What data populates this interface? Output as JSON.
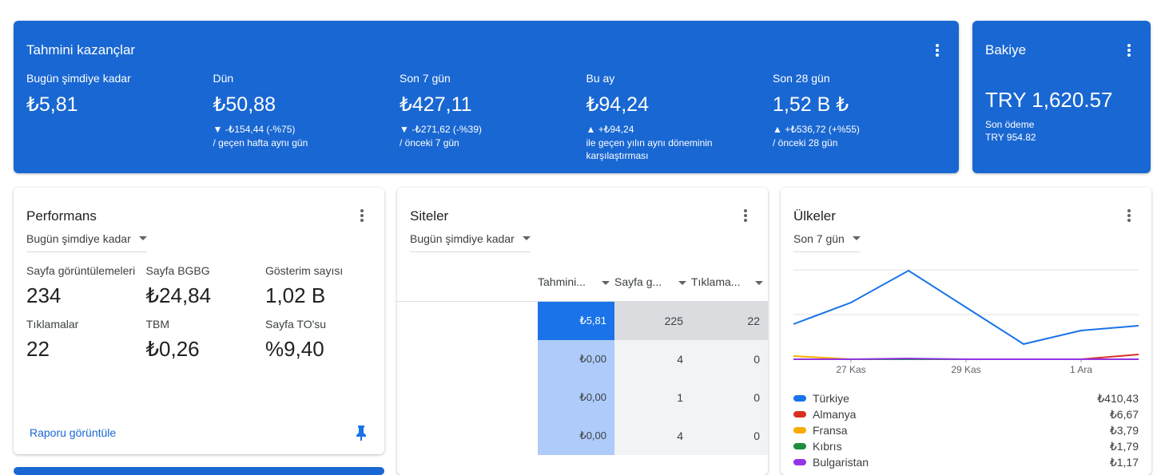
{
  "earnings": {
    "title": "Tahmini kazançlar",
    "items": [
      {
        "label": "Bugün şimdiye kadar",
        "value": "₺5,81"
      },
      {
        "label": "Dün",
        "value": "₺50,88",
        "change": "▼ -₺154,44 (-%75)",
        "compare": "/ geçen hafta aynı gün"
      },
      {
        "label": "Son 7 gün",
        "value": "₺427,11",
        "change": "▼ -₺271,62 (-%39)",
        "compare": "/ önceki 7 gün"
      },
      {
        "label": "Bu ay",
        "value": "₺94,24",
        "change": "▲ +₺94,24",
        "compare": "ile geçen yılın aynı döneminin karşılaştırması"
      },
      {
        "label": "Son 28 gün",
        "value": "1,52 B ₺",
        "change": "▲ +₺536,72 (+%55)",
        "compare": "/ önceki 28 gün"
      }
    ]
  },
  "balance": {
    "title": "Bakiye",
    "amount": "TRY 1,620.57",
    "last_payment_label": "Son ödeme",
    "last_payment": "TRY 954.82"
  },
  "performance": {
    "title": "Performans",
    "period": "Bugün şimdiye kadar",
    "metrics": [
      {
        "label": "Sayfa görüntülemeleri",
        "value": "234"
      },
      {
        "label": "Sayfa BGBG",
        "value": "₺24,84"
      },
      {
        "label": "Gösterim sayısı",
        "value": "1,02 B"
      },
      {
        "label": "Tıklamalar",
        "value": "22"
      },
      {
        "label": "TBM",
        "value": "₺0,26"
      },
      {
        "label": "Sayfa TO'su",
        "value": "%9,40"
      }
    ],
    "link": "Raporu görüntüle"
  },
  "sites": {
    "title": "Siteler",
    "period": "Bugün şimdiye kadar",
    "columns": [
      "Tahmini...",
      "Sayfa g...",
      "Tıklama..."
    ],
    "rows": [
      [
        "₺5,81",
        "225",
        "22"
      ],
      [
        "₺0,00",
        "4",
        "0"
      ],
      [
        "₺0,00",
        "1",
        "0"
      ],
      [
        "₺0,00",
        "4",
        "0"
      ]
    ]
  },
  "countries": {
    "title": "Ülkeler",
    "period": "Son 7 gün",
    "chart_data": {
      "type": "line",
      "categories": [
        null,
        "27 Kas",
        null,
        "29 Kas",
        null,
        "1 Ara",
        null
      ],
      "ylim": [
        0,
        112
      ],
      "series": [
        {
          "name": "Türkiye",
          "color": "#1a73e8",
          "values": [
            44,
            71,
            111,
            65,
            19,
            36,
            42
          ]
        },
        {
          "name": "Almanya",
          "color": "#d93025",
          "values": [
            0,
            0,
            0,
            0,
            0,
            0,
            6
          ]
        },
        {
          "name": "Fransa",
          "color": "#f9ab00",
          "values": [
            4,
            0,
            0,
            0,
            0,
            0,
            0
          ]
        },
        {
          "name": "Kıbrıs",
          "color": "#1e8e3e",
          "values": [
            0,
            0,
            0,
            0,
            0,
            0,
            0
          ]
        },
        {
          "name": "Bulgaristan",
          "color": "#9334e6",
          "values": [
            0,
            0,
            1,
            0,
            0,
            0,
            0
          ]
        }
      ]
    },
    "totals": [
      "₺410,43",
      "₺6,67",
      "₺3,79",
      "₺1,79",
      "₺1,17"
    ]
  }
}
